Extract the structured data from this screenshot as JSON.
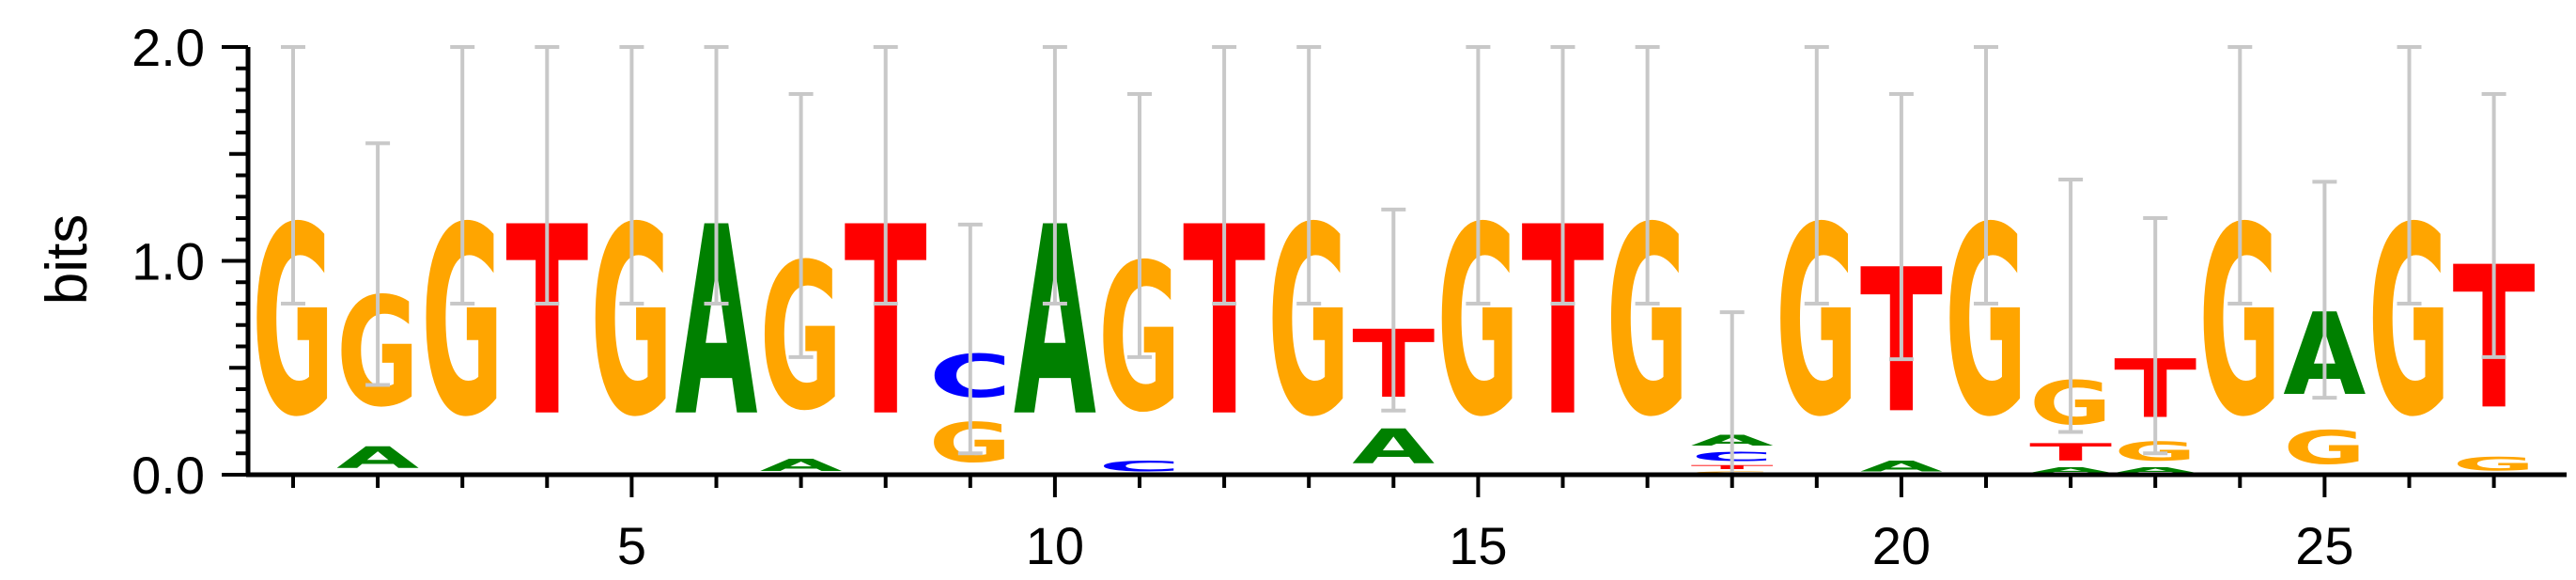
{
  "chart_data": {
    "type": "sequence-logo",
    "ylabel": "bits",
    "ylim": [
      0,
      2
    ],
    "y_ticks": [
      "0.0",
      "1.0",
      "2.0"
    ],
    "x_ticks": [
      "5",
      "10",
      "15",
      "20",
      "25"
    ],
    "colors": {
      "A": "#008000",
      "C": "#0000ff",
      "G": "#ffa500",
      "T": "#ff0000"
    },
    "errorbar_color": "#c8c8c8",
    "positions": [
      {
        "pos": 1,
        "stack": [
          [
            "G",
            1.42
          ]
        ],
        "error": [
          0.8,
          2.0
        ]
      },
      {
        "pos": 2,
        "stack": [
          [
            "A",
            0.16
          ],
          [
            "G",
            0.82
          ]
        ],
        "error": [
          0.42,
          1.55
        ]
      },
      {
        "pos": 3,
        "stack": [
          [
            "G",
            1.42
          ]
        ],
        "error": [
          0.8,
          2.0
        ]
      },
      {
        "pos": 4,
        "stack": [
          [
            "T",
            1.42
          ]
        ],
        "error": [
          0.8,
          2.0
        ]
      },
      {
        "pos": 5,
        "stack": [
          [
            "G",
            1.42
          ]
        ],
        "error": [
          0.8,
          2.0
        ]
      },
      {
        "pos": 6,
        "stack": [
          [
            "A",
            1.42
          ]
        ],
        "error": [
          0.8,
          2.0
        ]
      },
      {
        "pos": 7,
        "stack": [
          [
            "A",
            0.09
          ],
          [
            "G",
            1.1
          ]
        ],
        "error": [
          0.55,
          1.78
        ]
      },
      {
        "pos": 8,
        "stack": [
          [
            "T",
            1.42
          ]
        ],
        "error": [
          0.8,
          2.0
        ]
      },
      {
        "pos": 9,
        "stack": [
          [
            "G",
            0.3
          ],
          [
            "C",
            0.32
          ]
        ],
        "error": [
          0.1,
          1.17
        ]
      },
      {
        "pos": 10,
        "stack": [
          [
            "A",
            1.42
          ]
        ],
        "error": [
          0.8,
          2.0
        ]
      },
      {
        "pos": 11,
        "stack": [
          [
            "C",
            0.08
          ],
          [
            "G",
            1.11
          ]
        ],
        "error": [
          0.55,
          1.78
        ]
      },
      {
        "pos": 12,
        "stack": [
          [
            "T",
            1.42
          ]
        ],
        "error": [
          0.8,
          2.0
        ]
      },
      {
        "pos": 13,
        "stack": [
          [
            "G",
            1.42
          ]
        ],
        "error": [
          0.8,
          2.0
        ]
      },
      {
        "pos": 14,
        "stack": [
          [
            "A",
            0.26
          ],
          [
            "T",
            0.51
          ]
        ],
        "error": [
          0.3,
          1.24
        ]
      },
      {
        "pos": 15,
        "stack": [
          [
            "G",
            1.42
          ]
        ],
        "error": [
          0.8,
          2.0
        ]
      },
      {
        "pos": 16,
        "stack": [
          [
            "T",
            1.42
          ]
        ],
        "error": [
          0.8,
          2.0
        ]
      },
      {
        "pos": 17,
        "stack": [
          [
            "G",
            1.42
          ]
        ],
        "error": [
          0.8,
          2.0
        ]
      },
      {
        "pos": 18,
        "stack": [
          [
            "G",
            0.02
          ],
          [
            "T",
            0.03
          ],
          [
            "C",
            0.07
          ],
          [
            "A",
            0.08
          ]
        ],
        "error": [
          0.0,
          0.76
        ]
      },
      {
        "pos": 19,
        "stack": [
          [
            "G",
            1.42
          ]
        ],
        "error": [
          0.8,
          2.0
        ]
      },
      {
        "pos": 20,
        "stack": [
          [
            "A",
            0.08
          ],
          [
            "T",
            1.08
          ]
        ],
        "error": [
          0.54,
          1.78
        ]
      },
      {
        "pos": 21,
        "stack": [
          [
            "G",
            1.42
          ]
        ],
        "error": [
          0.8,
          2.0
        ]
      },
      {
        "pos": 22,
        "stack": [
          [
            "A",
            0.04
          ],
          [
            "T",
            0.13
          ],
          [
            "G",
            0.33
          ]
        ],
        "error": [
          0.2,
          1.38
        ]
      },
      {
        "pos": 23,
        "stack": [
          [
            "A",
            0.04
          ],
          [
            "G",
            0.14
          ],
          [
            "T",
            0.44
          ]
        ],
        "error": [
          0.1,
          1.2
        ]
      },
      {
        "pos": 24,
        "stack": [
          [
            "G",
            1.42
          ]
        ],
        "error": [
          0.8,
          2.0
        ]
      },
      {
        "pos": 25,
        "stack": [
          [
            "G",
            0.25
          ],
          [
            "A",
            0.62
          ]
        ],
        "error": [
          0.36,
          1.37
        ]
      },
      {
        "pos": 26,
        "stack": [
          [
            "G",
            1.42
          ]
        ],
        "error": [
          0.8,
          2.0
        ]
      },
      {
        "pos": 27,
        "stack": [
          [
            "G",
            0.1
          ],
          [
            "T",
            1.07
          ]
        ],
        "error": [
          0.55,
          1.78
        ]
      }
    ]
  }
}
